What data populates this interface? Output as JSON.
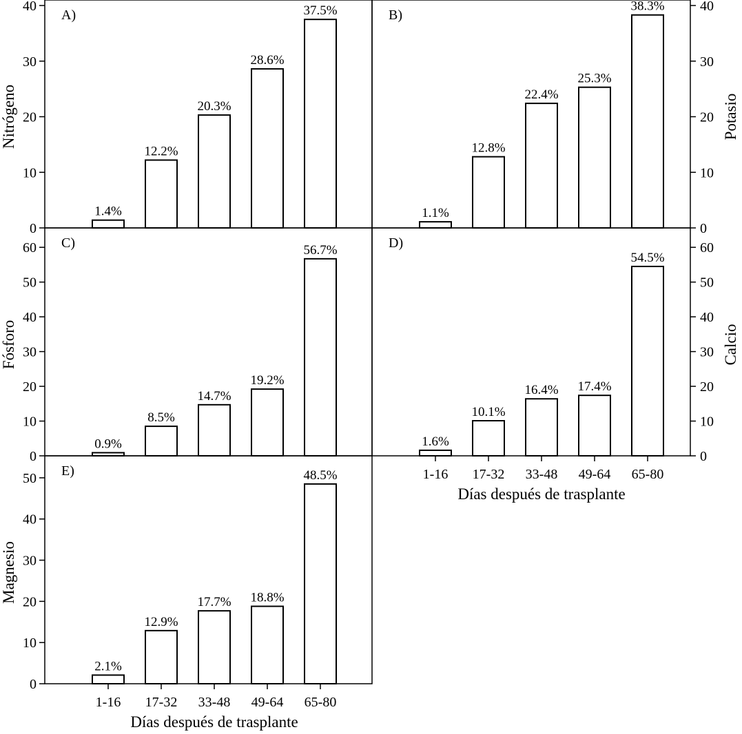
{
  "chart_data": [
    {
      "type": "bar",
      "panel": "A)",
      "ylabel": "Nitrógeno",
      "ylabel_side": "left",
      "categories": [
        "1-16",
        "17-32",
        "33-48",
        "49-64",
        "65-80"
      ],
      "values": [
        1.4,
        12.2,
        20.3,
        28.6,
        37.5
      ],
      "data_labels": [
        "1.4%",
        "12.2%",
        "20.3%",
        "28.6%",
        "37.5%"
      ],
      "ylim": [
        0,
        40
      ],
      "yticks": [
        0,
        10,
        20,
        30,
        40
      ],
      "grid": false
    },
    {
      "type": "bar",
      "panel": "B)",
      "ylabel": "Potasio",
      "ylabel_side": "right",
      "categories": [
        "1-16",
        "17-32",
        "33-48",
        "49-64",
        "65-80"
      ],
      "values": [
        1.1,
        12.8,
        22.4,
        25.3,
        38.3
      ],
      "data_labels": [
        "1.1%",
        "12.8%",
        "22.4%",
        "25.3%",
        "38.3%"
      ],
      "ylim": [
        0,
        40
      ],
      "yticks": [
        0,
        10,
        20,
        30,
        40
      ],
      "grid": false
    },
    {
      "type": "bar",
      "panel": "C)",
      "ylabel": "Fósforo",
      "ylabel_side": "left",
      "categories": [
        "1-16",
        "17-32",
        "33-48",
        "49-64",
        "65-80"
      ],
      "values": [
        0.9,
        8.5,
        14.7,
        19.2,
        56.7
      ],
      "data_labels": [
        "0.9%",
        "8.5%",
        "14.7%",
        "19.2%",
        "56.7%"
      ],
      "ylim": [
        0,
        64
      ],
      "yticks": [
        0,
        10,
        20,
        30,
        40,
        50,
        60
      ],
      "grid": false
    },
    {
      "type": "bar",
      "panel": "D)",
      "ylabel": "Calcio",
      "ylabel_side": "right",
      "xlabel": "Días después de trasplante",
      "categories": [
        "1-16",
        "17-32",
        "33-48",
        "49-64",
        "65-80"
      ],
      "values": [
        1.6,
        10.1,
        16.4,
        17.4,
        54.5
      ],
      "data_labels": [
        "1.6%",
        "10.1%",
        "16.4%",
        "17.4%",
        "54.5%"
      ],
      "ylim": [
        0,
        64
      ],
      "yticks": [
        0,
        10,
        20,
        30,
        40,
        50,
        60
      ],
      "grid": false
    },
    {
      "type": "bar",
      "panel": "E)",
      "ylabel": "Magnesio",
      "ylabel_side": "left",
      "xlabel": "Días después de trasplante",
      "categories": [
        "1-16",
        "17-32",
        "33-48",
        "49-64",
        "65-80"
      ],
      "values": [
        2.1,
        12.9,
        17.7,
        18.8,
        48.5
      ],
      "data_labels": [
        "2.1%",
        "12.9%",
        "17.7%",
        "18.8%",
        "48.5%"
      ],
      "ylim": [
        0,
        54
      ],
      "yticks": [
        0,
        10,
        20,
        30,
        40,
        50
      ],
      "grid": false
    }
  ]
}
